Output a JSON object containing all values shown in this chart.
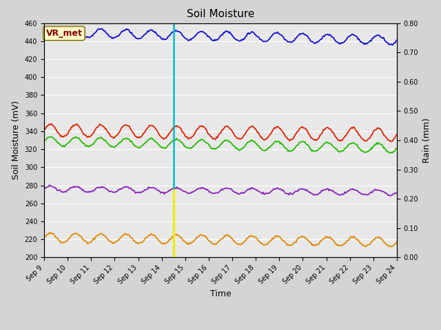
{
  "title": "Soil Moisture",
  "ylabel_left": "Soil Moisture (mV)",
  "ylabel_right": "Rain (mm)",
  "xlabel": "Time",
  "ylim_left": [
    200,
    460
  ],
  "ylim_right": [
    0.0,
    0.8
  ],
  "yticks_left": [
    200,
    220,
    240,
    260,
    280,
    300,
    320,
    340,
    360,
    380,
    400,
    420,
    440,
    460
  ],
  "yticks_right": [
    0.0,
    0.1,
    0.2,
    0.3,
    0.4,
    0.5,
    0.6,
    0.7,
    0.8
  ],
  "ytick_right_labels": [
    "0.00",
    "0.10",
    "0.20",
    "0.30",
    "0.40",
    "0.50",
    "0.60",
    "0.70",
    "0.80"
  ],
  "fig_bg_color": "#d4d4d4",
  "plot_bg_color": "#e8e8e8",
  "grid_color": "#ffffff",
  "vline_cyan_day": 5.5,
  "vline_yellow_day": 5.5,
  "annotation_text": "VR_met",
  "sm1_color": "#dd2200",
  "sm2_color": "#dd8800",
  "sm3_color": "#22bb00",
  "sm4_color": "#1111cc",
  "sm5_color": "#8822bb",
  "precip_color": "#00bbcc",
  "tz_color": "#eeee00",
  "n_points": 400,
  "sm1_base": 341,
  "sm1_amp": 7,
  "sm1_drift": -5,
  "sm2_base": 222,
  "sm2_amp": 5,
  "sm2_drift": -5,
  "sm3_base": 329,
  "sm3_amp": 5,
  "sm3_drift": -8,
  "sm4_base": 450,
  "sm4_amp": 5,
  "sm4_drift": -9,
  "sm5_base": 276,
  "sm5_amp": 3,
  "sm5_drift": -4,
  "wave_cycles": 14,
  "xtick_labels": [
    "Sep 9",
    "Sep 10",
    "Sep 11",
    "Sep 12",
    "Sep 13",
    "Sep 14",
    "Sep 15",
    "Sep 16",
    "Sep 17",
    "Sep 18",
    "Sep 19",
    "Sep 20",
    "Sep 21",
    "Sep 22",
    "Sep 23",
    "Sep 24"
  ]
}
